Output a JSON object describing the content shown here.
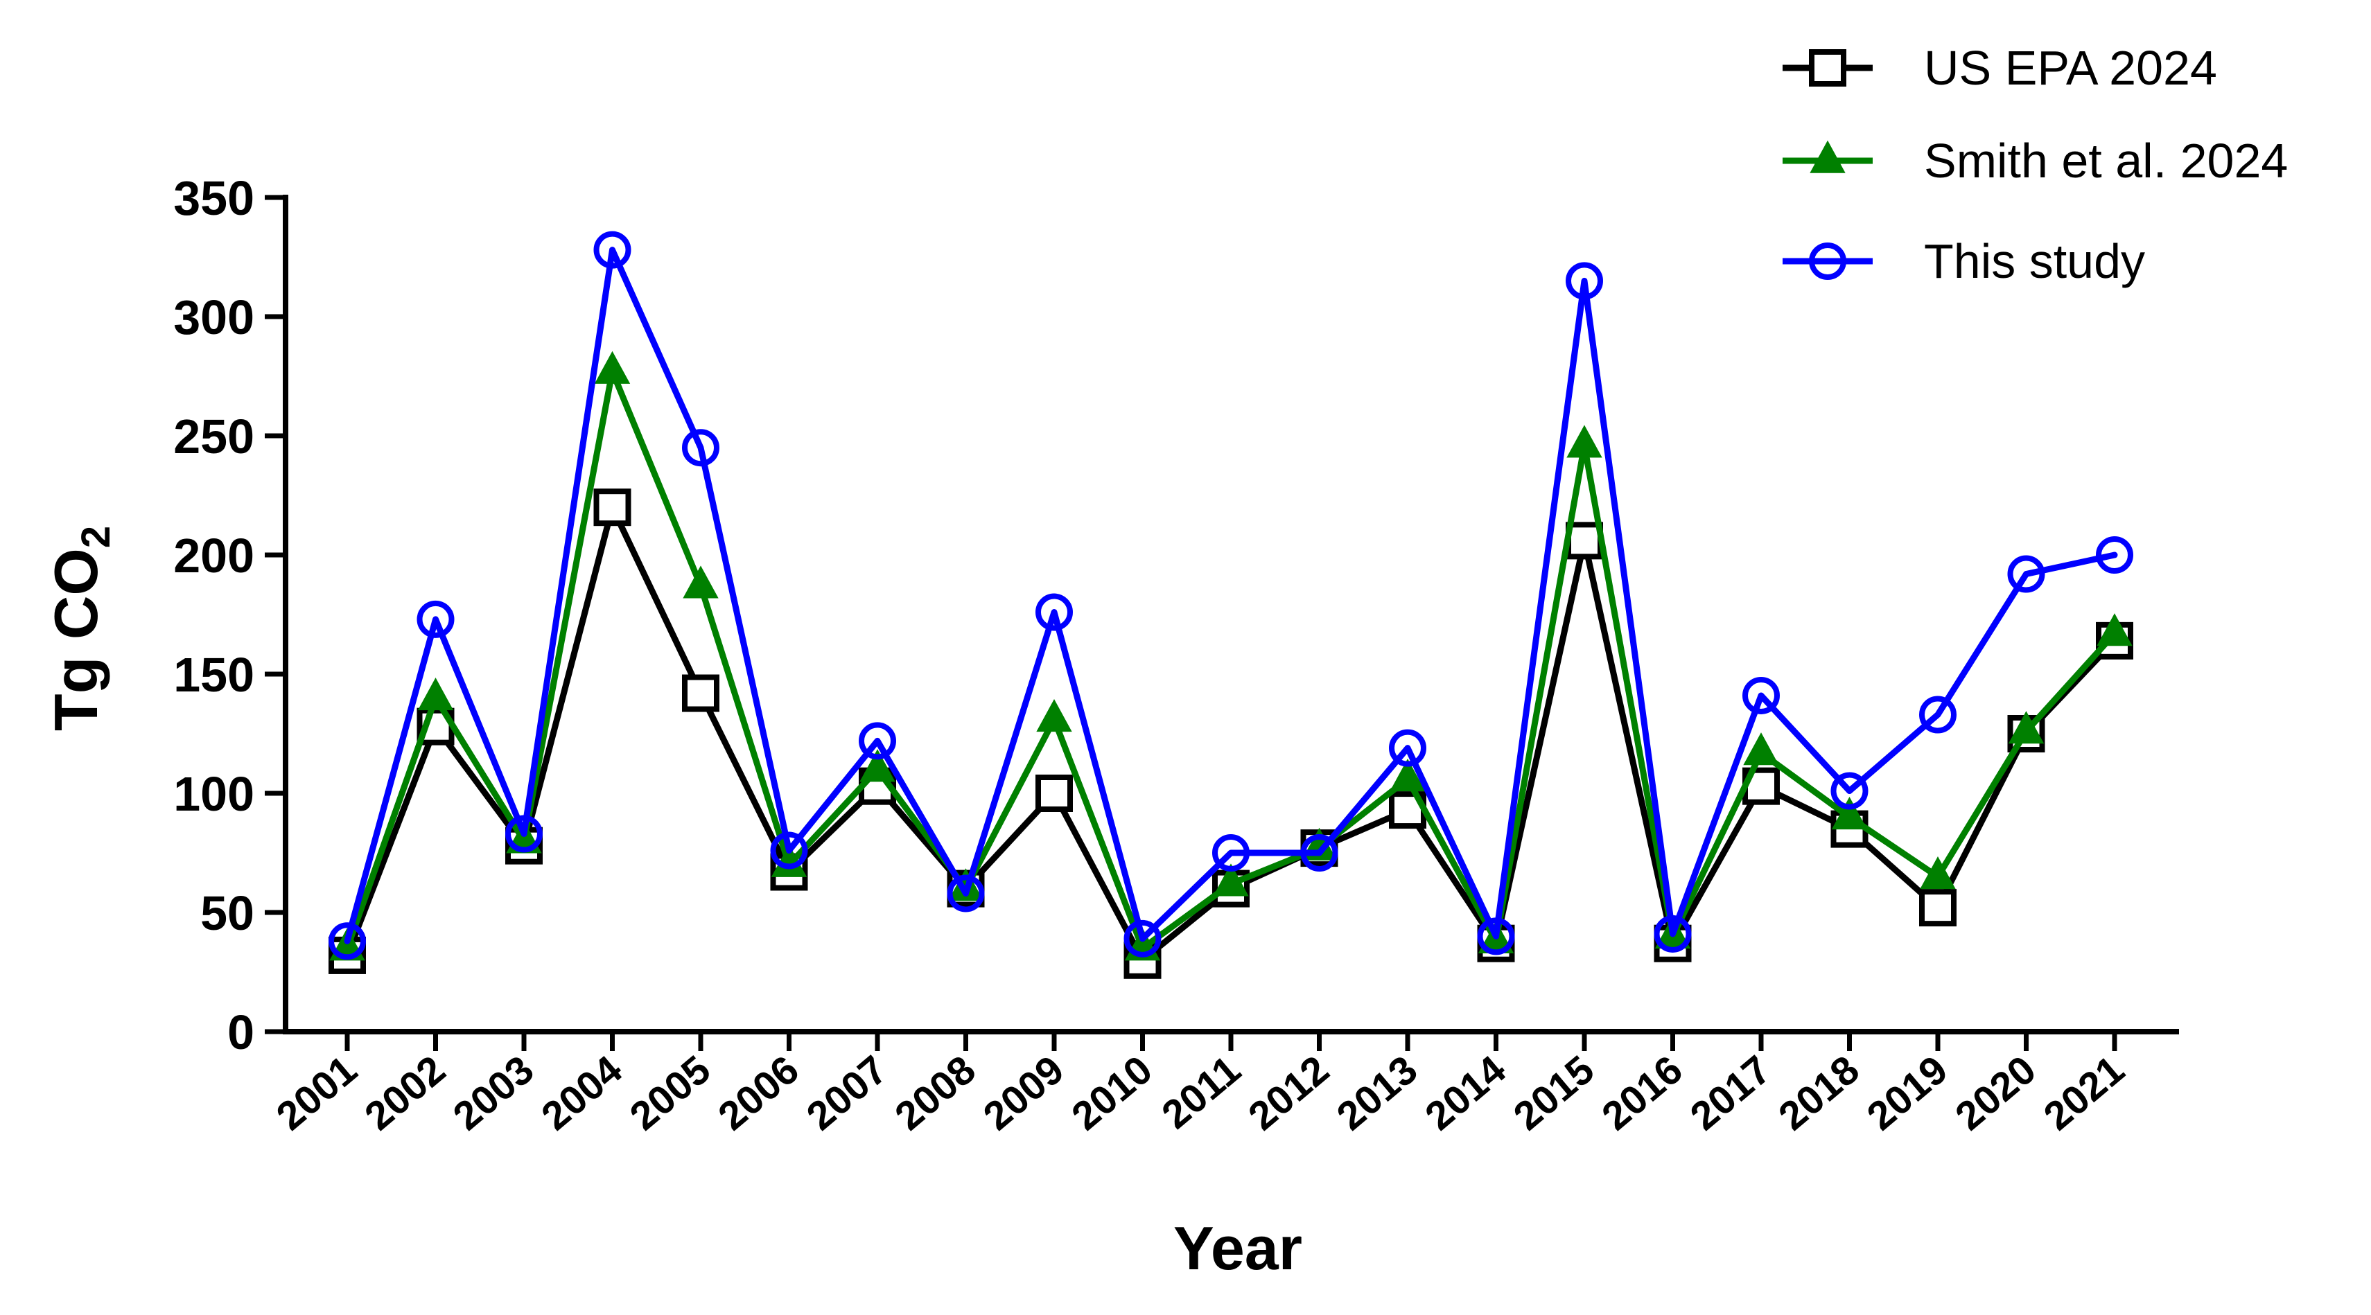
{
  "chart_data": {
    "type": "line",
    "title": "",
    "xlabel": "Year",
    "ylabel": {
      "main": "Tg CO",
      "subscript": "2"
    },
    "ylim": [
      0,
      350
    ],
    "y_ticks": [
      "0",
      "50",
      "100",
      "150",
      "200",
      "250",
      "300",
      "350"
    ],
    "x": [
      "2001",
      "2002",
      "2003",
      "2004",
      "2005",
      "2006",
      "2007",
      "2008",
      "2009",
      "2010",
      "2011",
      "2012",
      "2013",
      "2014",
      "2015",
      "2016",
      "2017",
      "2018",
      "2019",
      "2020",
      "2021"
    ],
    "grid": false,
    "legend_position": "top-right",
    "series": [
      {
        "name": "US EPA 2024",
        "color": "#000000",
        "marker": "square-open",
        "values": [
          32,
          128,
          78,
          220,
          142,
          67,
          103,
          60,
          100,
          30,
          60,
          77,
          93,
          37,
          206,
          37,
          103,
          85,
          52,
          125,
          164
        ]
      },
      {
        "name": "Smith et al. 2024",
        "color": "#008000",
        "marker": "triangle-filled",
        "values": [
          35,
          140,
          80,
          277,
          187,
          70,
          110,
          60,
          131,
          35,
          62,
          77,
          106,
          38,
          246,
          40,
          117,
          90,
          65,
          126,
          167
        ]
      },
      {
        "name": "This study",
        "color": "#0000ff",
        "marker": "circle-open",
        "values": [
          38,
          173,
          83,
          328,
          245,
          76,
          122,
          58,
          176,
          39,
          75,
          75,
          119,
          40,
          315,
          41,
          141,
          101,
          133,
          192,
          200
        ]
      }
    ]
  }
}
